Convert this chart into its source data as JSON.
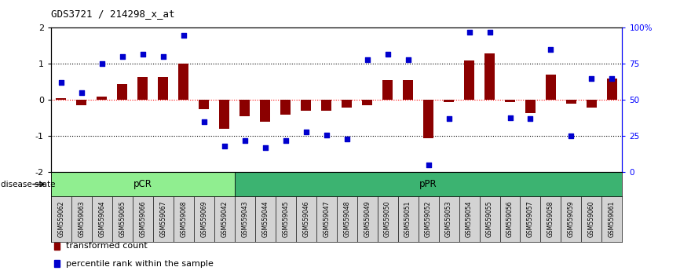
{
  "title": "GDS3721 / 214298_x_at",
  "samples": [
    "GSM559062",
    "GSM559063",
    "GSM559064",
    "GSM559065",
    "GSM559066",
    "GSM559067",
    "GSM559068",
    "GSM559069",
    "GSM559042",
    "GSM559043",
    "GSM559044",
    "GSM559045",
    "GSM559046",
    "GSM559047",
    "GSM559048",
    "GSM559049",
    "GSM559050",
    "GSM559051",
    "GSM559052",
    "GSM559053",
    "GSM559054",
    "GSM559055",
    "GSM559056",
    "GSM559057",
    "GSM559058",
    "GSM559059",
    "GSM559060",
    "GSM559061"
  ],
  "transformed_count": [
    0.05,
    -0.15,
    0.1,
    0.45,
    0.65,
    0.65,
    1.0,
    -0.25,
    -0.8,
    -0.45,
    -0.6,
    -0.4,
    -0.3,
    -0.3,
    -0.2,
    -0.15,
    0.55,
    0.55,
    -1.05,
    -0.05,
    1.1,
    1.3,
    -0.05,
    -0.35,
    0.7,
    -0.1,
    -0.2,
    0.6
  ],
  "percentile_rank": [
    62,
    55,
    75,
    80,
    82,
    80,
    95,
    35,
    18,
    22,
    17,
    22,
    28,
    26,
    23,
    78,
    82,
    78,
    5,
    37,
    97,
    97,
    38,
    37,
    85,
    25,
    65,
    65
  ],
  "pCR_count": 9,
  "pPR_count": 19,
  "bar_color": "#8B0000",
  "dot_color": "#0000CD",
  "ylim": [
    -2,
    2
  ],
  "right_ylim": [
    0,
    100
  ],
  "right_yticks": [
    0,
    25,
    50,
    75,
    100
  ],
  "right_yticklabels": [
    "0",
    "25",
    "50",
    "75",
    "100%"
  ],
  "left_yticks": [
    -2,
    -1,
    0,
    1,
    2
  ],
  "left_yticklabels": [
    "-2",
    "-1",
    "0",
    "1",
    "2"
  ],
  "dotted_lines": [
    1.0,
    0.0,
    -1.0
  ],
  "pcr_color": "#90EE90",
  "ppr_color": "#3CB371",
  "disease_state_label": "disease state",
  "legend_items": [
    {
      "label": "transformed count",
      "color": "#8B0000"
    },
    {
      "label": "percentile rank within the sample",
      "color": "#0000CD"
    }
  ]
}
